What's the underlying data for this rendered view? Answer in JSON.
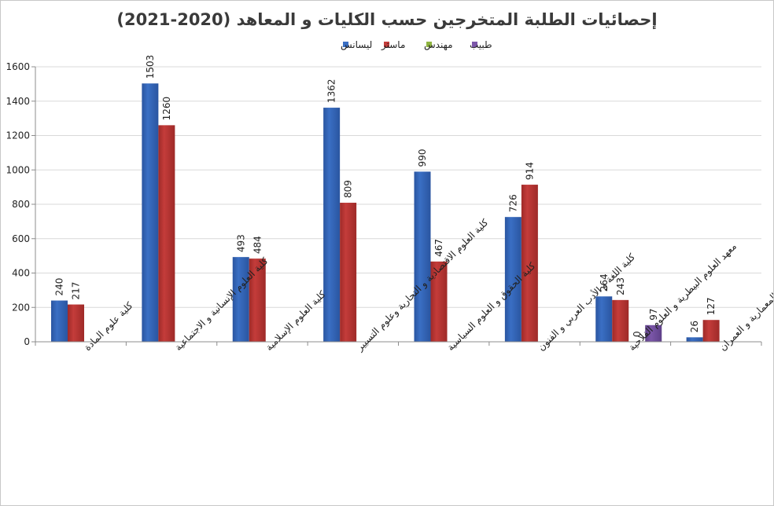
{
  "chart_data": {
    "type": "bar",
    "title": "إحصائيات الطلبة المتخرجين حسب الكليات و المعاهد (2020-2021)",
    "xlabel": "",
    "ylabel": "",
    "ylim": [
      0,
      1600
    ],
    "yticks": [
      0,
      200,
      400,
      600,
      800,
      1000,
      1200,
      1400,
      1600
    ],
    "grid": true,
    "legend_position": "top",
    "categories": [
      "كلية علوم المادة",
      "كلية العلوم الإنسانية و الاجتماعية",
      "كلية العلوم الإسلامية",
      "كلية العلوم الاقتصادية و التجارية وعلوم التسيير",
      "كلية الحقوق و العلوم السياسية",
      "كلية اللغة و الأدب العربي و الفنون",
      "معهد العلوم البيطرية و العلوم الفلاحية",
      "معهد الهندسة المعمارية و العمران"
    ],
    "series": [
      {
        "name": "ليسانس",
        "color": "#3a6fc4",
        "dark": "#2a55a0",
        "values": [
          240,
          1503,
          493,
          1362,
          990,
          726,
          264,
          26
        ]
      },
      {
        "name": "ماستر",
        "color": "#c43c3a",
        "dark": "#9e2a28",
        "values": [
          217,
          1260,
          484,
          809,
          467,
          914,
          243,
          127
        ]
      },
      {
        "name": "مهندس",
        "color": "#8fb440",
        "dark": "#6f9030",
        "values": [
          null,
          null,
          null,
          null,
          null,
          null,
          0,
          null
        ]
      },
      {
        "name": "طبيب",
        "color": "#7b56a8",
        "dark": "#5e4088",
        "values": [
          null,
          null,
          null,
          null,
          null,
          null,
          97,
          null
        ]
      }
    ]
  }
}
